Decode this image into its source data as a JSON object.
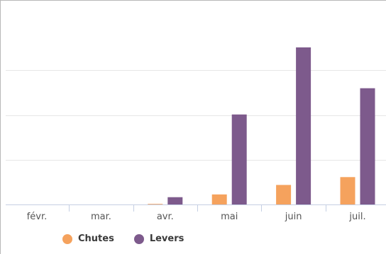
{
  "chart_data": {
    "type": "bar",
    "categories": [
      "févr.",
      "mar.",
      "avr.",
      "mai",
      "juin",
      "juil."
    ],
    "series": [
      {
        "name": "Chutes",
        "color": "#f5a25d",
        "values": [
          0,
          0,
          1,
          18,
          35,
          49
        ]
      },
      {
        "name": "Levers",
        "color": "#7d5a8c",
        "values": [
          0,
          0,
          13,
          161,
          281,
          208
        ]
      }
    ],
    "ylim": [
      0,
      300
    ],
    "yticks": [
      0,
      80,
      160,
      240
    ],
    "grid": true,
    "legend": "bottom-left",
    "title": "",
    "xlabel": "",
    "ylabel": ""
  }
}
